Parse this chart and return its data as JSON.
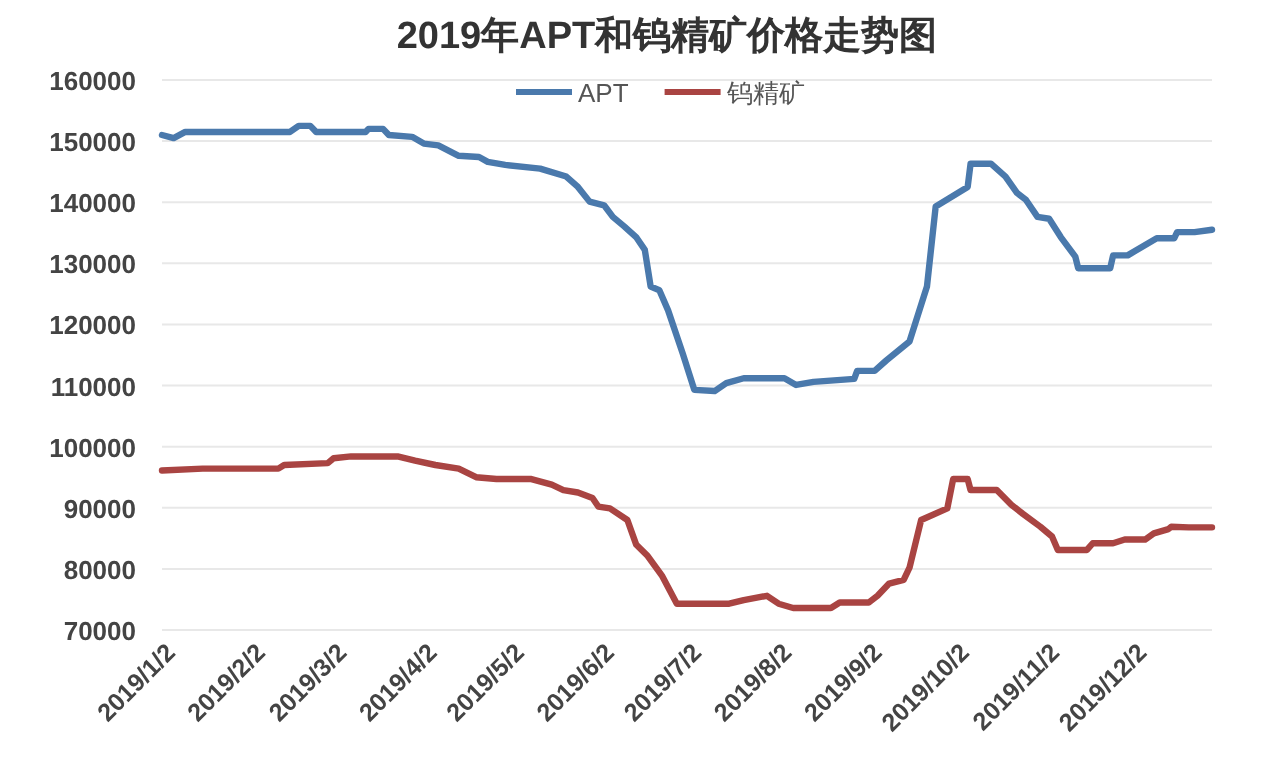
{
  "chart_data": {
    "type": "line",
    "title": "2019年APT和钨精矿价格走势图",
    "series": [
      {
        "name": "APT",
        "color": "#4a79ac",
        "x": [
          "2018-12-28",
          "2019-01-01",
          "2019-01-05",
          "2019-02-10",
          "2019-02-13",
          "2019-02-17",
          "2019-02-19",
          "2019-03-08",
          "2019-03-09",
          "2019-03-14",
          "2019-03-16",
          "2019-03-24",
          "2019-03-28",
          "2019-04-02",
          "2019-04-09",
          "2019-04-16",
          "2019-04-19",
          "2019-04-25",
          "2019-05-07",
          "2019-05-16",
          "2019-05-20",
          "2019-05-24",
          "2019-05-29",
          "2019-06-01",
          "2019-06-05",
          "2019-06-09",
          "2019-06-12",
          "2019-06-14",
          "2019-06-17",
          "2019-06-20",
          "2019-06-25",
          "2019-06-29",
          "2019-07-06",
          "2019-07-10",
          "2019-07-16",
          "2019-07-30",
          "2019-08-03",
          "2019-08-09",
          "2019-08-23",
          "2019-08-24",
          "2019-08-30",
          "2019-09-03",
          "2019-09-11",
          "2019-09-17",
          "2019-09-20",
          "2019-10-01",
          "2019-10-02",
          "2019-10-09",
          "2019-10-14",
          "2019-10-18",
          "2019-10-21",
          "2019-10-25",
          "2019-10-29",
          "2019-11-02",
          "2019-11-07",
          "2019-11-08",
          "2019-11-19",
          "2019-11-20",
          "2019-11-25",
          "2019-12-05",
          "2019-12-11",
          "2019-12-12",
          "2019-12-18",
          "2019-12-24"
        ],
        "values": [
          151000,
          150500,
          151500,
          151500,
          152500,
          152500,
          151500,
          151500,
          152000,
          152000,
          151000,
          150700,
          149600,
          149300,
          147600,
          147400,
          146600,
          146100,
          145500,
          144200,
          142500,
          140100,
          139500,
          137600,
          136000,
          134300,
          132200,
          126200,
          125600,
          122300,
          115300,
          109300,
          109100,
          110400,
          111200,
          111200,
          110100,
          110600,
          111100,
          112400,
          112400,
          114100,
          117200,
          126200,
          139300,
          142500,
          146300,
          146300,
          144200,
          141500,
          140400,
          137600,
          137300,
          134300,
          131100,
          129200,
          129200,
          131300,
          131300,
          134100,
          134100,
          135100,
          135100,
          135500
        ]
      },
      {
        "name": "钨精矿",
        "color": "#a94442",
        "x": [
          "2018-12-28",
          "2019-01-11",
          "2019-02-06",
          "2019-02-08",
          "2019-02-23",
          "2019-02-25",
          "2019-03-03",
          "2019-03-19",
          "2019-03-25",
          "2019-04-01",
          "2019-04-09",
          "2019-04-15",
          "2019-04-22",
          "2019-05-04",
          "2019-05-11",
          "2019-05-15",
          "2019-05-20",
          "2019-05-25",
          "2019-05-27",
          "2019-05-31",
          "2019-06-06",
          "2019-06-09",
          "2019-06-13",
          "2019-06-18",
          "2019-06-23",
          "2019-07-11",
          "2019-07-16",
          "2019-07-24",
          "2019-07-28",
          "2019-08-02",
          "2019-08-15",
          "2019-08-18",
          "2019-08-28",
          "2019-08-31",
          "2019-09-04",
          "2019-09-09",
          "2019-09-11",
          "2019-09-15",
          "2019-09-24",
          "2019-09-26",
          "2019-10-01",
          "2019-10-02",
          "2019-10-11",
          "2019-10-16",
          "2019-10-20",
          "2019-10-26",
          "2019-10-30",
          "2019-11-01",
          "2019-11-11",
          "2019-11-13",
          "2019-11-20",
          "2019-11-24",
          "2019-12-01",
          "2019-12-04",
          "2019-12-09",
          "2019-12-10",
          "2019-12-16",
          "2019-12-24"
        ],
        "values": [
          96100,
          96400,
          96400,
          97000,
          97300,
          98100,
          98400,
          98400,
          97700,
          97000,
          96400,
          95000,
          94700,
          94700,
          93800,
          92900,
          92500,
          91600,
          90200,
          89900,
          88000,
          84000,
          82100,
          78800,
          74300,
          74300,
          74900,
          75600,
          74300,
          73600,
          73600,
          74500,
          74500,
          75600,
          77600,
          78200,
          80200,
          88000,
          89900,
          94700,
          94700,
          92900,
          92900,
          90500,
          89000,
          86900,
          85300,
          83100,
          83100,
          84200,
          84200,
          84800,
          84800,
          85800,
          86500,
          86900,
          86800,
          86800
        ]
      }
    ],
    "xlim": [
      "2018-12-28",
      "2019-12-24"
    ],
    "xticks": [
      {
        "value": "2019-01-02",
        "label": "2019/1/2"
      },
      {
        "value": "2019-02-02",
        "label": "2019/2/2"
      },
      {
        "value": "2019-03-02",
        "label": "2019/3/2"
      },
      {
        "value": "2019-04-02",
        "label": "2019/4/2"
      },
      {
        "value": "2019-05-02",
        "label": "2019/5/2"
      },
      {
        "value": "2019-06-02",
        "label": "2019/6/2"
      },
      {
        "value": "2019-07-02",
        "label": "2019/7/2"
      },
      {
        "value": "2019-08-02",
        "label": "2019/8/2"
      },
      {
        "value": "2019-09-02",
        "label": "2019/9/2"
      },
      {
        "value": "2019-10-02",
        "label": "2019/10/2"
      },
      {
        "value": "2019-11-02",
        "label": "2019/11/2"
      },
      {
        "value": "2019-12-02",
        "label": "2019/12/2"
      }
    ],
    "ylim": [
      70000,
      160000
    ],
    "yticks": [
      70000,
      80000,
      90000,
      100000,
      110000,
      120000,
      130000,
      140000,
      150000,
      160000
    ],
    "grid": "y",
    "legend": "top",
    "line_style": "solid",
    "marker": "none"
  }
}
